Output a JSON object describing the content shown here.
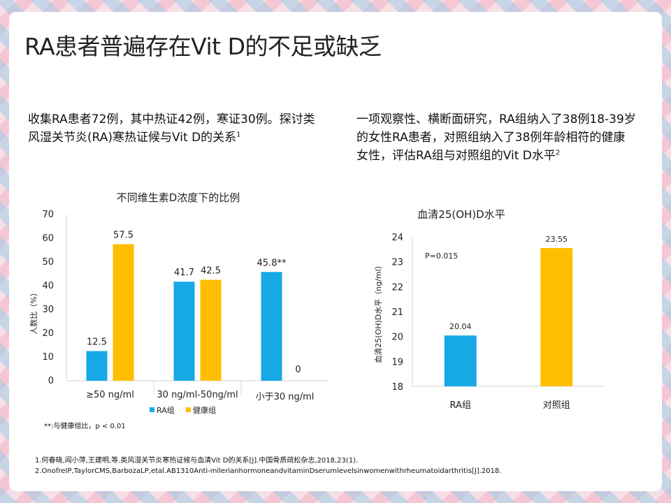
{
  "title": "RA患者普遍存在Vit  D的不足或缺乏",
  "left_text": {
    "main": "收集RA患者72例，其中热证42例，寒证30例。探讨类风湿关节炎(RA)寒热证候与Vit  D的关系",
    "ref": "1"
  },
  "right_text": {
    "main": "一项观察性、横断面研究，RA组纳入了38例18-39岁的女性RA患者，对照组纳入了38例年龄相符的健康女性，评估RA组与对照组的Vit  D水平",
    "ref": "2"
  },
  "colors": {
    "ra": "#16a9e6",
    "healthy": "#ffbf00",
    "axis": "#d6d6d6"
  },
  "significance_note": "**:与健康组比，p < 0.01",
  "references": [
    "1.何春晓,阎小萍,王建明,等.类风湿关节炎寒热证候与血清Vit  D的关系[J].中国骨质疏松杂志,2018,23(1).",
    "2.OnofreIP,TaylorCMS,BarbozaLP,etal.AB1310Anti-mllerianhormoneandvitaminDserumlevelsinwomenwithrheumatoidarthritis[J].2018."
  ],
  "chart_data": [
    {
      "type": "bar",
      "title": "不同维生素D浓度下的比例",
      "ylabel": "人数比（%）",
      "ylim": [
        0,
        70
      ],
      "yticks": [
        0,
        10,
        20,
        30,
        40,
        50,
        60,
        70
      ],
      "categories": [
        "≥50 ng/ml",
        "30 ng/ml-50ng/ml",
        "小于30 ng/ml"
      ],
      "series": [
        {
          "name": "RA组",
          "color": "#16a9e6",
          "values": [
            12.5,
            41.7,
            45.8
          ],
          "labels": [
            "12.5",
            "41.7",
            "45.8**"
          ]
        },
        {
          "name": "健康组",
          "color": "#ffbf00",
          "values": [
            57.5,
            42.5,
            0
          ],
          "labels": [
            "57.5",
            "42.5",
            "0"
          ]
        }
      ],
      "legend": "bottom-center"
    },
    {
      "type": "bar",
      "title": "血清25(OH)D水平",
      "ylabel": "血清25(OH)D水平（ng/ml）",
      "ylim": [
        18,
        24
      ],
      "yticks": [
        18,
        19,
        20,
        21,
        22,
        23,
        24
      ],
      "categories": [
        "RA组",
        "对照组"
      ],
      "values": [
        20.04,
        23.55
      ],
      "labels": [
        "20.04",
        "23.55"
      ],
      "colors": [
        "#16a9e6",
        "#ffbf00"
      ],
      "annotation": "P=0.015"
    }
  ]
}
